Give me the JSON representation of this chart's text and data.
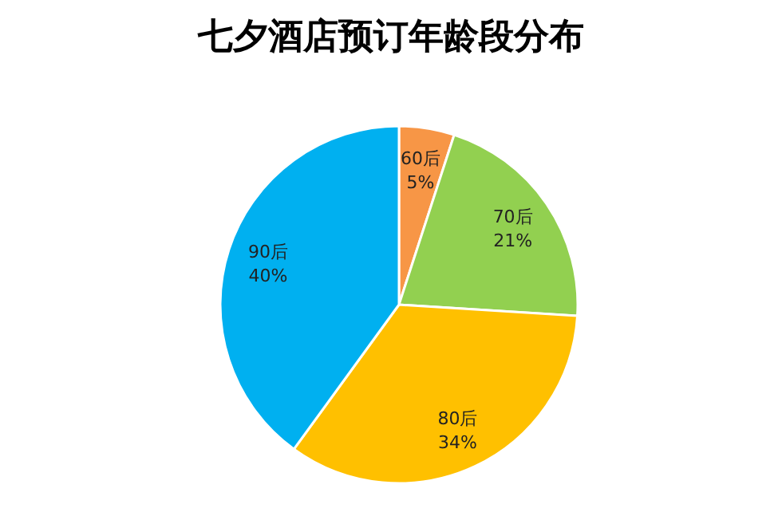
{
  "chart_data": {
    "type": "pie",
    "title": "七夕酒店预订年龄段分布",
    "categories": [
      "60后",
      "70后",
      "80后",
      "90后"
    ],
    "values": [
      5,
      21,
      34,
      40
    ],
    "value_labels": [
      "5%",
      "21%",
      "34%",
      "40%"
    ],
    "colors": [
      "#f79646",
      "#92d050",
      "#ffc000",
      "#00b0f0"
    ],
    "legend": false
  }
}
